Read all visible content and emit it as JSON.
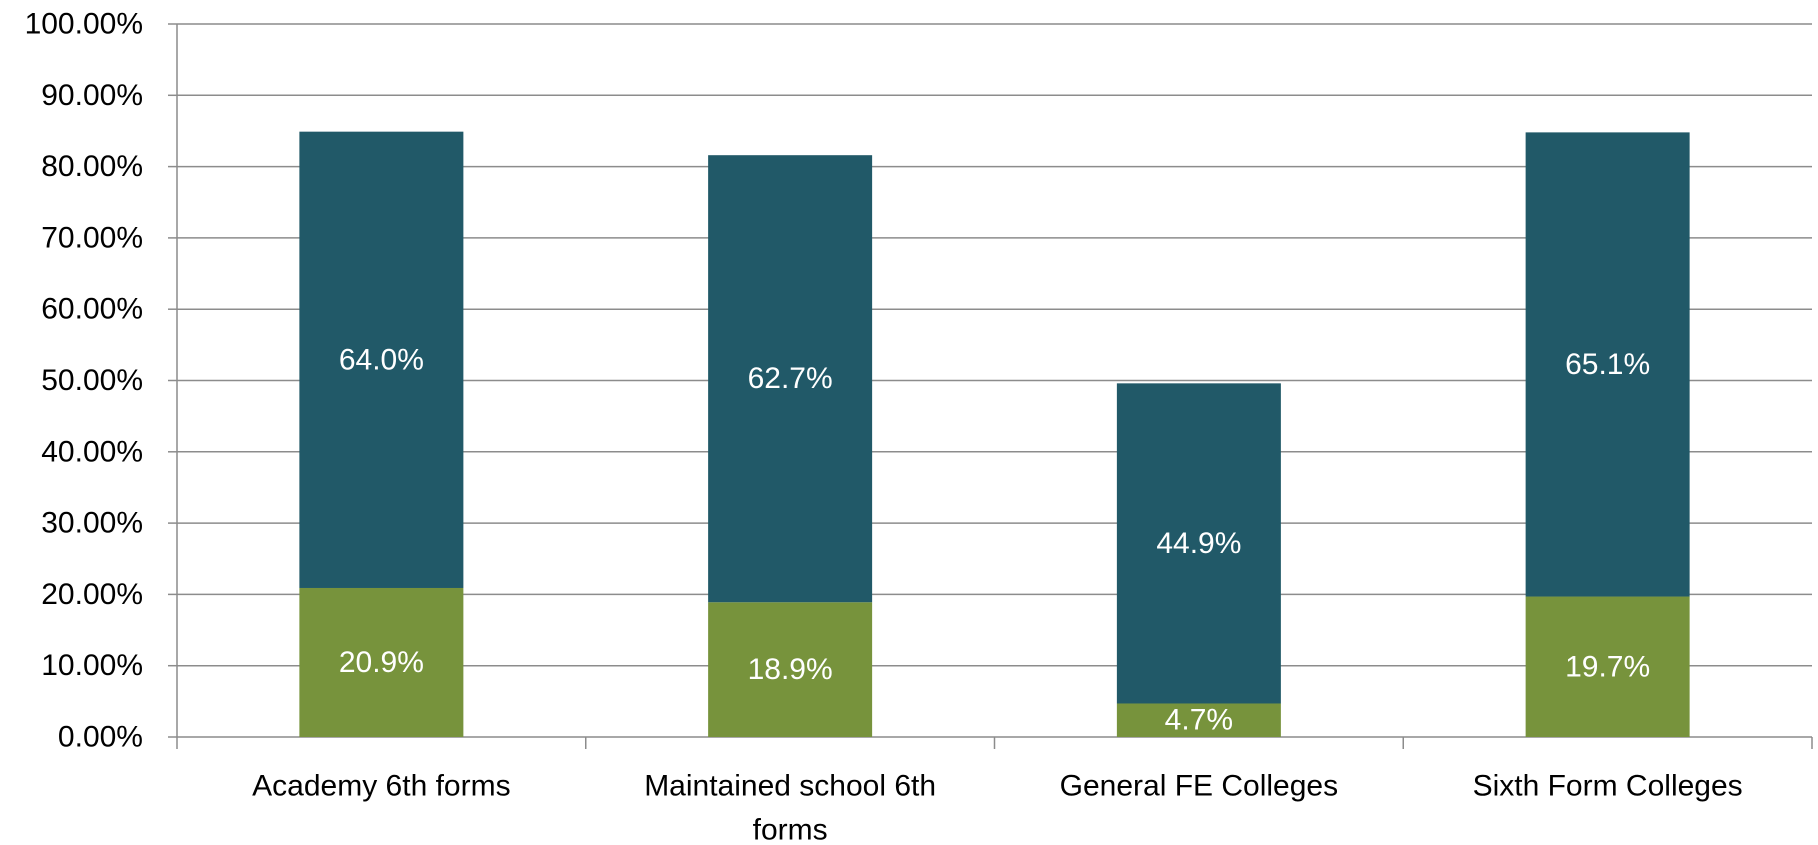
{
  "chart_data": {
    "type": "bar",
    "stacked": true,
    "categories": [
      "Academy 6th forms",
      "Maintained school 6th forms",
      "General FE Colleges",
      "Sixth Form Colleges"
    ],
    "category_lines": [
      [
        "Academy 6th forms"
      ],
      [
        "Maintained school 6th",
        "forms"
      ],
      [
        "General FE Colleges"
      ],
      [
        "Sixth Form Colleges"
      ]
    ],
    "series": [
      {
        "values": [
          20.9,
          18.9,
          4.7,
          19.7
        ],
        "labels": [
          "20.9%",
          "18.9%",
          "4.7%",
          "19.7%"
        ],
        "color": "#77933c"
      },
      {
        "values": [
          64.0,
          62.7,
          44.9,
          65.1
        ],
        "labels": [
          "64.0%",
          "62.7%",
          "44.9%",
          "65.1%"
        ],
        "color": "#215968"
      }
    ],
    "yticks": [
      0,
      10,
      20,
      30,
      40,
      50,
      60,
      70,
      80,
      90,
      100
    ],
    "ytick_labels": [
      "0.00%",
      "10.00%",
      "20.00%",
      "30.00%",
      "40.00%",
      "50.00%",
      "60.00%",
      "70.00%",
      "80.00%",
      "90.00%",
      "100.00%"
    ],
    "ylim": [
      0,
      100
    ],
    "grid": true,
    "title": "",
    "xlabel": "",
    "ylabel": "",
    "legend": "none"
  }
}
